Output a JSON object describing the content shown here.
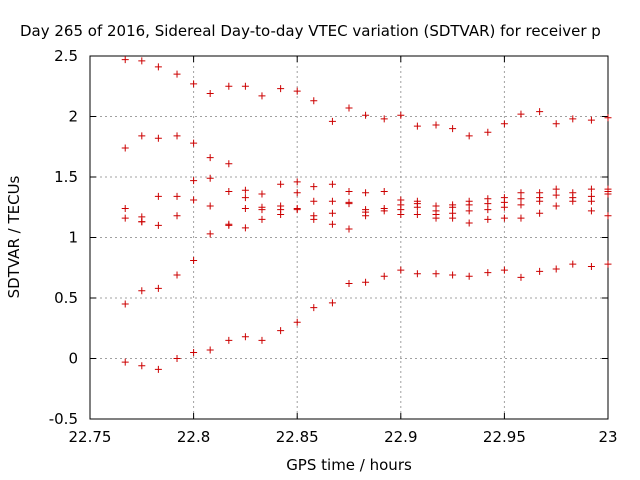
{
  "chart_data": {
    "type": "scatter",
    "title": "Day 265 of 2016, Sidereal Day-to-day VTEC variation (SDTVAR) for receiver p",
    "xlabel": "GPS time / hours",
    "ylabel": "SDTVAR / TECUs",
    "xlim": [
      22.75,
      23.0
    ],
    "ylim": [
      -0.5,
      2.5
    ],
    "xticks": [
      22.75,
      22.8,
      22.85,
      22.9,
      22.95,
      23.0
    ],
    "xtick_labels": [
      "22.75",
      "22.8",
      "22.85",
      "22.9",
      "22.95",
      "23"
    ],
    "yticks": [
      -0.5,
      0,
      0.5,
      1,
      1.5,
      2,
      2.5
    ],
    "ytick_labels": [
      "-0.5",
      "0",
      "0.5",
      "1",
      "1.5",
      "2",
      "2.5"
    ],
    "grid": true,
    "marker": "+",
    "color": "#cc0000",
    "points": [
      {
        "x": 22.767,
        "y": 2.47
      },
      {
        "x": 22.775,
        "y": 2.46
      },
      {
        "x": 22.783,
        "y": 2.41
      },
      {
        "x": 22.792,
        "y": 2.35
      },
      {
        "x": 22.8,
        "y": 2.27
      },
      {
        "x": 22.808,
        "y": 2.19
      },
      {
        "x": 22.817,
        "y": 2.25
      },
      {
        "x": 22.825,
        "y": 2.25
      },
      {
        "x": 22.833,
        "y": 2.17
      },
      {
        "x": 22.842,
        "y": 2.23
      },
      {
        "x": 22.85,
        "y": 2.21
      },
      {
        "x": 22.858,
        "y": 2.13
      },
      {
        "x": 22.867,
        "y": 1.96
      },
      {
        "x": 22.875,
        "y": 2.07
      },
      {
        "x": 22.883,
        "y": 2.01
      },
      {
        "x": 22.892,
        "y": 1.98
      },
      {
        "x": 22.9,
        "y": 2.01
      },
      {
        "x": 22.908,
        "y": 1.92
      },
      {
        "x": 22.917,
        "y": 1.93
      },
      {
        "x": 22.925,
        "y": 1.9
      },
      {
        "x": 22.933,
        "y": 1.84
      },
      {
        "x": 22.942,
        "y": 1.87
      },
      {
        "x": 22.95,
        "y": 1.94
      },
      {
        "x": 22.958,
        "y": 2.02
      },
      {
        "x": 22.967,
        "y": 2.04
      },
      {
        "x": 22.975,
        "y": 1.94
      },
      {
        "x": 22.983,
        "y": 1.98
      },
      {
        "x": 22.992,
        "y": 1.97
      },
      {
        "x": 23.0,
        "y": 1.99
      },
      {
        "x": 22.767,
        "y": 1.74
      },
      {
        "x": 22.775,
        "y": 1.84
      },
      {
        "x": 22.783,
        "y": 1.82
      },
      {
        "x": 22.792,
        "y": 1.84
      },
      {
        "x": 22.8,
        "y": 1.78
      },
      {
        "x": 22.808,
        "y": 1.66
      },
      {
        "x": 22.817,
        "y": 1.61
      },
      {
        "x": 22.825,
        "y": 1.39
      },
      {
        "x": 22.833,
        "y": 1.36
      },
      {
        "x": 22.842,
        "y": 1.44
      },
      {
        "x": 22.85,
        "y": 1.46
      },
      {
        "x": 22.858,
        "y": 1.42
      },
      {
        "x": 22.867,
        "y": 1.44
      },
      {
        "x": 22.875,
        "y": 1.38
      },
      {
        "x": 22.883,
        "y": 1.37
      },
      {
        "x": 22.892,
        "y": 1.38
      },
      {
        "x": 22.9,
        "y": 1.31
      },
      {
        "x": 22.908,
        "y": 1.3
      },
      {
        "x": 22.917,
        "y": 1.26
      },
      {
        "x": 22.925,
        "y": 1.27
      },
      {
        "x": 22.933,
        "y": 1.3
      },
      {
        "x": 22.942,
        "y": 1.32
      },
      {
        "x": 22.95,
        "y": 1.33
      },
      {
        "x": 22.958,
        "y": 1.37
      },
      {
        "x": 22.967,
        "y": 1.37
      },
      {
        "x": 22.975,
        "y": 1.4
      },
      {
        "x": 22.983,
        "y": 1.37
      },
      {
        "x": 22.992,
        "y": 1.4
      },
      {
        "x": 23.0,
        "y": 1.4
      },
      {
        "x": 22.767,
        "y": 1.24
      },
      {
        "x": 22.775,
        "y": 1.17
      },
      {
        "x": 22.783,
        "y": 1.34
      },
      {
        "x": 22.792,
        "y": 1.34
      },
      {
        "x": 22.8,
        "y": 1.47
      },
      {
        "x": 22.808,
        "y": 1.49
      },
      {
        "x": 22.817,
        "y": 1.38
      },
      {
        "x": 22.825,
        "y": 1.33
      },
      {
        "x": 22.833,
        "y": 1.25
      },
      {
        "x": 22.842,
        "y": 1.26
      },
      {
        "x": 22.85,
        "y": 1.37
      },
      {
        "x": 22.858,
        "y": 1.3
      },
      {
        "x": 22.867,
        "y": 1.3
      },
      {
        "x": 22.875,
        "y": 1.29
      },
      {
        "x": 22.883,
        "y": 1.23
      },
      {
        "x": 22.892,
        "y": 1.24
      },
      {
        "x": 22.9,
        "y": 1.27
      },
      {
        "x": 22.908,
        "y": 1.28
      },
      {
        "x": 22.917,
        "y": 1.22
      },
      {
        "x": 22.925,
        "y": 1.25
      },
      {
        "x": 22.933,
        "y": 1.27
      },
      {
        "x": 22.942,
        "y": 1.28
      },
      {
        "x": 22.95,
        "y": 1.29
      },
      {
        "x": 22.958,
        "y": 1.32
      },
      {
        "x": 22.967,
        "y": 1.33
      },
      {
        "x": 22.975,
        "y": 1.35
      },
      {
        "x": 22.983,
        "y": 1.33
      },
      {
        "x": 22.992,
        "y": 1.34
      },
      {
        "x": 23.0,
        "y": 1.38
      },
      {
        "x": 22.767,
        "y": 1.16
      },
      {
        "x": 22.775,
        "y": 1.13
      },
      {
        "x": 22.783,
        "y": 1.1
      },
      {
        "x": 22.792,
        "y": 1.18
      },
      {
        "x": 22.8,
        "y": 1.31
      },
      {
        "x": 22.808,
        "y": 1.26
      },
      {
        "x": 22.817,
        "y": 1.11
      },
      {
        "x": 22.825,
        "y": 1.24
      },
      {
        "x": 22.833,
        "y": 1.23
      },
      {
        "x": 22.842,
        "y": 1.23
      },
      {
        "x": 22.85,
        "y": 1.24
      },
      {
        "x": 22.858,
        "y": 1.18
      },
      {
        "x": 22.867,
        "y": 1.2
      },
      {
        "x": 22.875,
        "y": 1.28
      },
      {
        "x": 22.883,
        "y": 1.21
      },
      {
        "x": 22.892,
        "y": 1.22
      },
      {
        "x": 22.9,
        "y": 1.23
      },
      {
        "x": 22.908,
        "y": 1.25
      },
      {
        "x": 22.917,
        "y": 1.19
      },
      {
        "x": 22.925,
        "y": 1.2
      },
      {
        "x": 22.933,
        "y": 1.22
      },
      {
        "x": 22.942,
        "y": 1.23
      },
      {
        "x": 22.95,
        "y": 1.25
      },
      {
        "x": 22.958,
        "y": 1.27
      },
      {
        "x": 22.967,
        "y": 1.3
      },
      {
        "x": 22.975,
        "y": 1.26
      },
      {
        "x": 22.983,
        "y": 1.3
      },
      {
        "x": 22.992,
        "y": 1.3
      },
      {
        "x": 23.0,
        "y": 1.36
      },
      {
        "x": 22.775,
        "y": 1.13
      },
      {
        "x": 22.808,
        "y": 1.03
      },
      {
        "x": 22.817,
        "y": 1.1
      },
      {
        "x": 22.825,
        "y": 1.08
      },
      {
        "x": 22.833,
        "y": 1.15
      },
      {
        "x": 22.842,
        "y": 1.19
      },
      {
        "x": 22.85,
        "y": 1.23
      },
      {
        "x": 22.858,
        "y": 1.15
      },
      {
        "x": 22.867,
        "y": 1.11
      },
      {
        "x": 22.875,
        "y": 1.07
      },
      {
        "x": 22.883,
        "y": 1.18
      },
      {
        "x": 22.9,
        "y": 1.19
      },
      {
        "x": 22.908,
        "y": 1.19
      },
      {
        "x": 22.917,
        "y": 1.16
      },
      {
        "x": 22.925,
        "y": 1.16
      },
      {
        "x": 22.933,
        "y": 1.12
      },
      {
        "x": 22.942,
        "y": 1.15
      },
      {
        "x": 22.95,
        "y": 1.16
      },
      {
        "x": 22.958,
        "y": 1.16
      },
      {
        "x": 22.967,
        "y": 1.2
      },
      {
        "x": 22.992,
        "y": 1.22
      },
      {
        "x": 23.0,
        "y": 1.18
      },
      {
        "x": 22.767,
        "y": 0.45
      },
      {
        "x": 22.775,
        "y": 0.56
      },
      {
        "x": 22.783,
        "y": 0.58
      },
      {
        "x": 22.792,
        "y": 0.69
      },
      {
        "x": 22.8,
        "y": 0.81
      },
      {
        "x": 22.867,
        "y": 0.46
      },
      {
        "x": 22.875,
        "y": 0.62
      },
      {
        "x": 22.883,
        "y": 0.63
      },
      {
        "x": 22.892,
        "y": 0.68
      },
      {
        "x": 22.9,
        "y": 0.73
      },
      {
        "x": 22.908,
        "y": 0.7
      },
      {
        "x": 22.917,
        "y": 0.7
      },
      {
        "x": 22.925,
        "y": 0.69
      },
      {
        "x": 22.933,
        "y": 0.68
      },
      {
        "x": 22.942,
        "y": 0.71
      },
      {
        "x": 22.95,
        "y": 0.73
      },
      {
        "x": 22.958,
        "y": 0.67
      },
      {
        "x": 22.967,
        "y": 0.72
      },
      {
        "x": 22.975,
        "y": 0.74
      },
      {
        "x": 22.983,
        "y": 0.78
      },
      {
        "x": 22.992,
        "y": 0.76
      },
      {
        "x": 23.0,
        "y": 0.78
      },
      {
        "x": 22.767,
        "y": -0.03
      },
      {
        "x": 22.775,
        "y": -0.06
      },
      {
        "x": 22.783,
        "y": -0.09
      },
      {
        "x": 22.792,
        "y": 0.0
      },
      {
        "x": 22.8,
        "y": 0.05
      },
      {
        "x": 22.808,
        "y": 0.07
      },
      {
        "x": 22.817,
        "y": 0.15
      },
      {
        "x": 22.825,
        "y": 0.18
      },
      {
        "x": 22.833,
        "y": 0.15
      },
      {
        "x": 22.842,
        "y": 0.23
      },
      {
        "x": 22.85,
        "y": 0.3
      },
      {
        "x": 22.858,
        "y": 0.42
      }
    ]
  }
}
